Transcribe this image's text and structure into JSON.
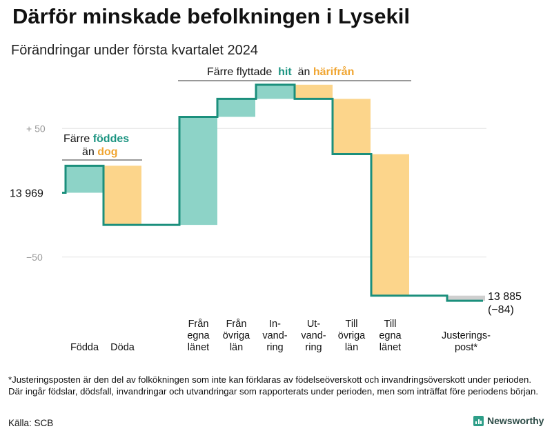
{
  "title": "Därför minskade befolkningen i Lysekil",
  "subtitle": "Förändringar under första kvartalet 2024",
  "colors": {
    "increase": "#8dd3c7",
    "decrease": "#fcd58b",
    "line": "#1b8f7c",
    "teal_text": "#1b9481",
    "orange_text": "#f0a531",
    "grid": "#e3e3e3"
  },
  "annotations": {
    "births": {
      "line1_prefix": "Färre",
      "line1_highlight": "föddes",
      "line2_prefix": "än",
      "line2_highlight": "dog"
    },
    "migration": {
      "prefix": "Färre flyttade",
      "highlight1": "hit",
      "middle": "än",
      "highlight2": "härifrån"
    }
  },
  "chart_data": {
    "type": "waterfall",
    "start_value": 13969,
    "end_value": 13885,
    "start_label": "13  969",
    "end_label": "13 885",
    "end_change_label": "(−84)",
    "y_ticks": [
      {
        "value": 50,
        "label": "+  50"
      },
      {
        "value": -50,
        "label": "−50"
      }
    ],
    "ylim": [
      -74,
      87
    ],
    "steps": [
      {
        "label": [
          "Födda"
        ],
        "change": 21
      },
      {
        "label": [
          "Döda"
        ],
        "change": -46
      },
      {
        "label": [
          "Från",
          "egna",
          "länet"
        ],
        "change": 84
      },
      {
        "label": [
          "Från",
          "övriga",
          "län"
        ],
        "change": 14
      },
      {
        "label": [
          "In-",
          "vand-",
          "ring"
        ],
        "change": 11
      },
      {
        "label": [
          "Ut-",
          "vand-",
          "ring"
        ],
        "change": -11
      },
      {
        "label": [
          "Till",
          "övriga",
          "län"
        ],
        "change": -43
      },
      {
        "label": [
          "Till",
          "egna",
          "länet"
        ],
        "change": -110
      },
      {
        "label": [
          "Justerings-",
          "post*"
        ],
        "change": -4
      }
    ]
  },
  "footnote": "*Justeringsposten är den del av folkökningen som inte kan förklaras av födelseöverskott och invandringsöverskott under perioden. Där ingår födslar, dödsfall, invandringar och utvandringar som rapporterats under perioden, men som inträffat före periodens början.",
  "source": "Källa: SCB",
  "brand": "Newsworthy"
}
